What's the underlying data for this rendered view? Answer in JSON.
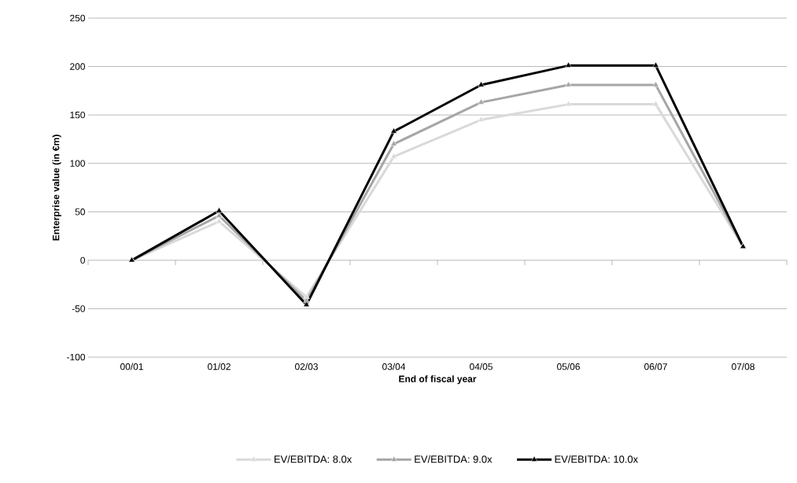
{
  "chart_data": {
    "type": "line",
    "xlabel": "End of fiscal year",
    "ylabel": "Enterprise value (in €m)",
    "categories": [
      "00/01",
      "01/02",
      "02/03",
      "03/04",
      "04/05",
      "05/06",
      "06/07",
      "07/08"
    ],
    "series": [
      {
        "name": "EV/EBITDA: 8.0x",
        "color": "#d9d9d9",
        "values": [
          0,
          40,
          -38,
          107,
          145,
          161,
          161,
          14
        ]
      },
      {
        "name": "EV/EBITDA: 9.0x",
        "color": "#a6a6a6",
        "values": [
          0,
          46,
          -42,
          120,
          163,
          181,
          181,
          14
        ]
      },
      {
        "name": "EV/EBITDA: 10.0x",
        "color": "#000000",
        "values": [
          0,
          51,
          -46,
          133,
          181,
          201,
          201,
          14
        ]
      }
    ],
    "ylim": [
      -100,
      250
    ],
    "yticks": [
      -100,
      -50,
      0,
      50,
      100,
      150,
      200,
      250
    ],
    "grid": "y",
    "legend": "bottom",
    "marker": "triangle",
    "line_style": "solid"
  }
}
